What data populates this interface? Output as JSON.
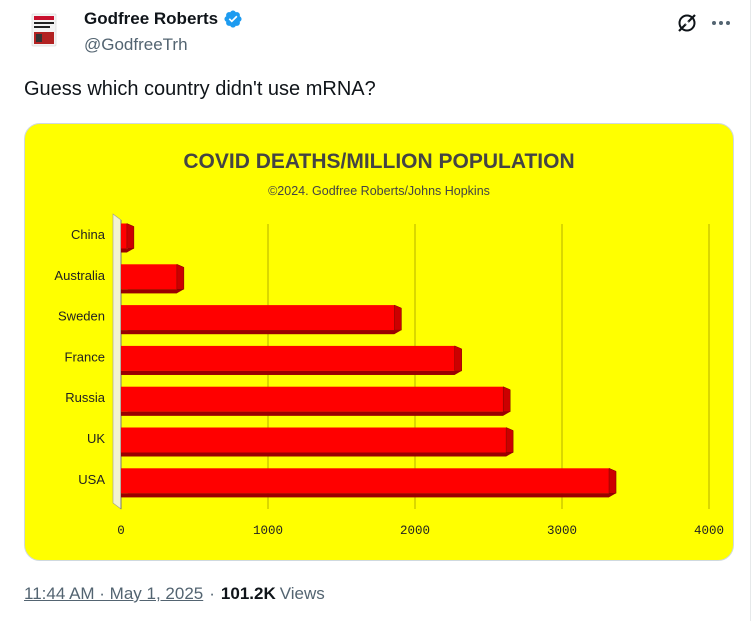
{
  "author": {
    "display_name": "Godfree Roberts",
    "handle": "@GodfreeTrh",
    "verified": true,
    "verified_color": "#1d9bf0",
    "avatar_icon": "book-cover-avatar"
  },
  "tweet": {
    "text": "Guess which country didn't use mRNA?",
    "timestamp": "11:44 AM · May 1, 2025",
    "views_count": "101.2K",
    "views_label": "Views"
  },
  "icons": {
    "grok": "grok-icon",
    "more": "more-icon"
  },
  "chart_data": {
    "type": "bar",
    "orientation": "horizontal",
    "title": "COVID DEATHS/MILLION POPULATION",
    "subtitle": "©2024. Godfree Roberts/Johns Hopkins",
    "categories": [
      "China",
      "Australia",
      "Sweden",
      "France",
      "Russia",
      "UK",
      "USA"
    ],
    "values": [
      40,
      380,
      1860,
      2270,
      2600,
      2620,
      3320
    ],
    "xlim": [
      0,
      4000
    ],
    "xticks": [
      0,
      1000,
      2000,
      3000,
      4000
    ],
    "grid": true,
    "background_color": "#ffff00",
    "bar_color": "#ff0000",
    "bar_shadow_color": "#990000"
  }
}
